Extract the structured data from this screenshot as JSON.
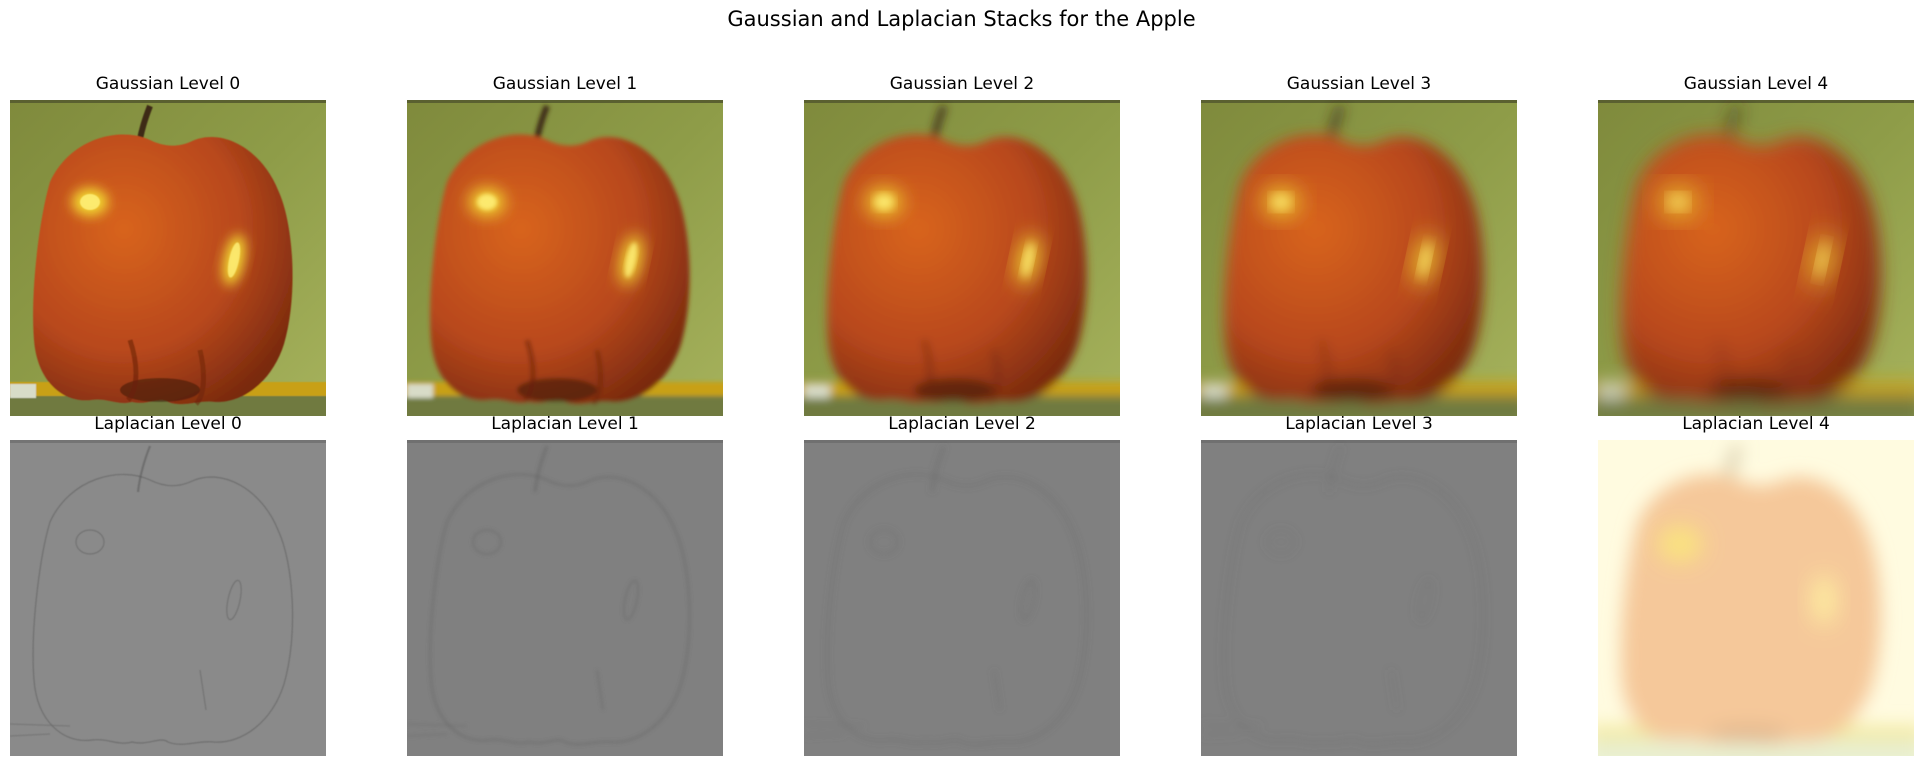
{
  "figure": {
    "title": "Gaussian and Laplacian Stacks for the Apple"
  },
  "rows": [
    {
      "name": "gaussian",
      "panels": [
        {
          "title": "Gaussian Level 0",
          "blur": 0
        },
        {
          "title": "Gaussian Level 1",
          "blur": 1
        },
        {
          "title": "Gaussian Level 2",
          "blur": 2
        },
        {
          "title": "Gaussian Level 3",
          "blur": 3
        },
        {
          "title": "Gaussian Level 4",
          "blur": 4
        }
      ]
    },
    {
      "name": "laplacian",
      "panels": [
        {
          "title": "Laplacian Level 0",
          "blur": 0
        },
        {
          "title": "Laplacian Level 1",
          "blur": 1
        },
        {
          "title": "Laplacian Level 2",
          "blur": 2
        },
        {
          "title": "Laplacian Level 3",
          "blur": 3
        },
        {
          "title": "Laplacian Level 4",
          "blur": 4
        }
      ]
    }
  ],
  "colors": {
    "background_green": "#8e9c48",
    "apple_red": "#b8481c",
    "apple_highlight": "#f2d830",
    "stem": "#3c2a14",
    "table_yellow": "#c8a014",
    "laplacian_gray": "#808080",
    "residual_cream": "#fffbe0",
    "residual_apple": "#f5c89a"
  }
}
